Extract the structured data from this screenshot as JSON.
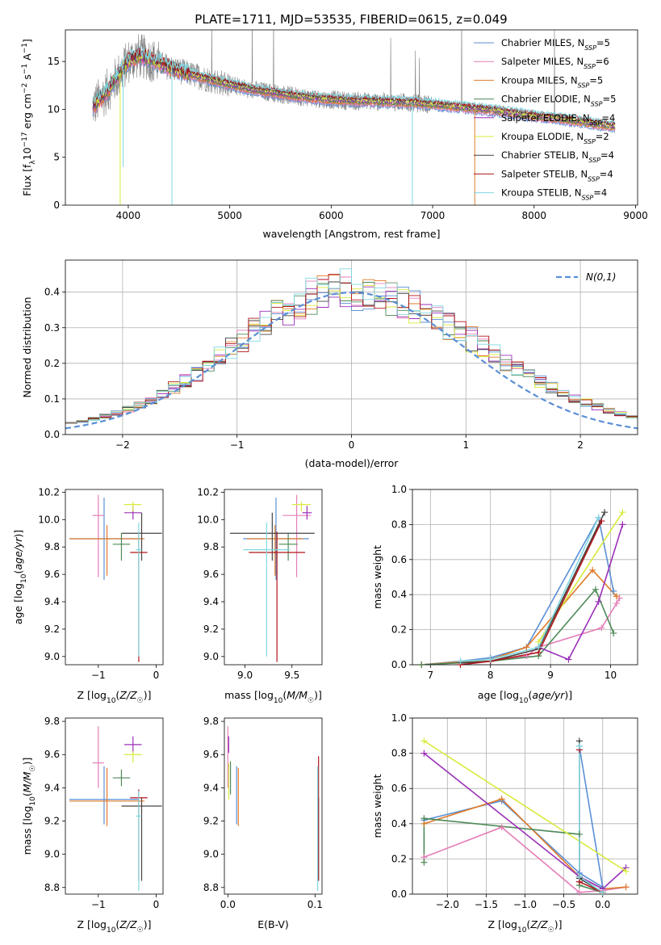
{
  "title": "PLATE=1711, MJD=53535, FIBERID=0615, z=0.049",
  "colors": {
    "chabrier_miles": "#5b8fd6",
    "salpeter_miles": "#e57fb8",
    "kroupa_miles": "#e07b2a",
    "chabrier_elodie": "#4e8a57",
    "salpeter_elodie": "#9b30b8",
    "kroupa_elodie": "#d9ea3d",
    "chabrier_stelib": "#444444",
    "salpeter_stelib": "#b0161b",
    "kroupa_stelib": "#7fd8e0",
    "data": "#808080",
    "grid": "#b0b0b0"
  },
  "legend_series": [
    {
      "name": "Chabrier MILES, N",
      "sub": "SSP",
      "eq": "=5",
      "color": "#5b8fd6"
    },
    {
      "name": "Salpeter MILES, N",
      "sub": "SSP",
      "eq": "=6",
      "color": "#e57fb8"
    },
    {
      "name": "Kroupa MILES, N",
      "sub": "SSP",
      "eq": "=5",
      "color": "#e07b2a"
    },
    {
      "name": "Chabrier ELODIE, N",
      "sub": "SSP",
      "eq": "=5",
      "color": "#4e8a57"
    },
    {
      "name": "Salpeter ELODIE, N",
      "sub": "SSP",
      "eq": "=4",
      "color": "#9b30b8"
    },
    {
      "name": "Kroupa ELODIE, N",
      "sub": "SSP",
      "eq": "=2",
      "color": "#d9ea3d"
    },
    {
      "name": "Chabrier STELIB, N",
      "sub": "SSP",
      "eq": "=4",
      "color": "#444444"
    },
    {
      "name": "Salpeter STELIB, N",
      "sub": "SSP",
      "eq": "=4",
      "color": "#b0161b"
    },
    {
      "name": "Kroupa STELIB, N",
      "sub": "SSP",
      "eq": "=4",
      "color": "#7fd8e0"
    }
  ],
  "chart_data": [
    {
      "id": "spectrum",
      "type": "line",
      "xlabel": "wavelength [Angstrom, rest frame]",
      "ylabel": "Flux [f_λ10^-17 erg cm^-2 s^-1 A^-1]",
      "xlim": [
        3380,
        9020
      ],
      "ylim": [
        0,
        18.3
      ],
      "xticks": [
        4000,
        5000,
        6000,
        7000,
        8000,
        9000
      ],
      "yticks": [
        0,
        5,
        10,
        15
      ],
      "legend": "top-right",
      "grid": false,
      "continuum": {
        "x": [
          3650,
          3700,
          3800,
          3900,
          4000,
          4100,
          4200,
          4400,
          4600,
          4800,
          5000,
          5200,
          5500,
          5800,
          6000,
          6200,
          6500,
          6800,
          7000,
          7200,
          7400,
          7600,
          7800,
          8000,
          8200,
          8400,
          8600,
          8800
        ],
        "y": [
          10.3,
          10.8,
          12.0,
          13.5,
          15.0,
          15.6,
          15.3,
          14.4,
          13.7,
          13.1,
          12.6,
          12.1,
          11.6,
          11.2,
          11.0,
          10.9,
          10.8,
          10.7,
          10.5,
          10.3,
          10.1,
          9.9,
          9.6,
          9.3,
          9.1,
          8.8,
          8.5,
          8.2
        ]
      },
      "dips": [
        [
          3920,
          0
        ],
        [
          4430,
          0
        ],
        [
          6800,
          0
        ],
        [
          7415,
          0
        ],
        [
          3950,
          4
        ]
      ]
    },
    {
      "id": "residuals",
      "type": "line",
      "xlabel": "(data-model)/error",
      "ylabel": "Normed distribution",
      "xlim": [
        -2.5,
        2.5
      ],
      "ylim": [
        0,
        0.49
      ],
      "xticks": [
        -2,
        -1,
        0,
        1,
        2
      ],
      "yticks": [
        0.0,
        0.1,
        0.2,
        0.3,
        0.4
      ],
      "legend": "top-right",
      "legend_label": "N(0,1)",
      "grid": true,
      "bin_width": 0.1
    },
    {
      "id": "age_vs_Z",
      "type": "scatter",
      "xlabel": "Z [log10(Z/Z☉)]",
      "ylabel": "age [log10(age/yr)]",
      "xlim": [
        -1.57,
        0.12
      ],
      "ylim": [
        8.94,
        10.22
      ],
      "xticks": [
        -1,
        0
      ],
      "yticks": [
        9.0,
        9.2,
        9.4,
        9.6,
        9.8,
        10.0,
        10.2
      ],
      "points": [
        {
          "series": 0,
          "x": -0.9,
          "xerr": [
            0.6,
            0.6
          ],
          "y": 9.86,
          "yerr": [
            0.3,
            0.3
          ]
        },
        {
          "series": 1,
          "x": -1.0,
          "xerr": [
            0.1,
            0.1
          ],
          "y": 10.03,
          "yerr": [
            0.45,
            0.15
          ]
        },
        {
          "series": 2,
          "x": -0.85,
          "xerr": [
            0.65,
            0.65
          ],
          "y": 9.86,
          "yerr": [
            0.27,
            0.1
          ]
        },
        {
          "series": 3,
          "x": -0.6,
          "xerr": [
            0.15,
            0.15
          ],
          "y": 9.82,
          "yerr": [
            0.12,
            0.08
          ]
        },
        {
          "series": 4,
          "x": -0.4,
          "xerr": [
            0.15,
            0.15
          ],
          "y": 10.05,
          "yerr": [
            0.05,
            0.05
          ]
        },
        {
          "series": 5,
          "x": -0.4,
          "xerr": [
            0.15,
            0.15
          ],
          "y": 10.11,
          "yerr": [
            0.05,
            0.02
          ]
        },
        {
          "series": 6,
          "x": -0.25,
          "xerr": [
            0.35,
            0.35
          ],
          "y": 9.9,
          "yerr": [
            0.2,
            0.15
          ]
        },
        {
          "series": 7,
          "x": -0.3,
          "xerr": [
            0.15,
            0.15
          ],
          "y": 9.76,
          "yerr": [
            0.8,
            0.15
          ]
        },
        {
          "series": 8,
          "x": -0.3,
          "xerr": [
            0.05,
            0.05
          ],
          "y": 9.78,
          "yerr": [
            0.78,
            0.2
          ]
        }
      ]
    },
    {
      "id": "age_vs_mass",
      "type": "scatter",
      "xlabel": "mass [log10(M/M☉)]",
      "ylabel": "",
      "xlim": [
        8.78,
        9.82
      ],
      "ylim": [
        8.94,
        10.22
      ],
      "xticks": [
        9.0,
        9.5
      ],
      "yticks": [
        9.0,
        9.2,
        9.4,
        9.6,
        9.8,
        10.0,
        10.2
      ],
      "points": [
        {
          "series": 0,
          "x": 9.33,
          "xerr": [
            0.35,
            0.35
          ],
          "y": 9.86,
          "yerr": [
            0.3,
            0.3
          ]
        },
        {
          "series": 1,
          "x": 9.55,
          "xerr": [
            0.15,
            0.15
          ],
          "y": 10.03,
          "yerr": [
            0.45,
            0.15
          ]
        },
        {
          "series": 2,
          "x": 9.32,
          "xerr": [
            0.3,
            0.3
          ],
          "y": 9.86,
          "yerr": [
            0.27,
            0.1
          ]
        },
        {
          "series": 3,
          "x": 9.46,
          "xerr": [
            0.1,
            0.1
          ],
          "y": 9.82,
          "yerr": [
            0.12,
            0.08
          ]
        },
        {
          "series": 4,
          "x": 9.66,
          "xerr": [
            0.05,
            0.05
          ],
          "y": 10.05,
          "yerr": [
            0.05,
            0.05
          ]
        },
        {
          "series": 5,
          "x": 9.6,
          "xerr": [
            0.1,
            0.1
          ],
          "y": 10.11,
          "yerr": [
            0.05,
            0.02
          ]
        },
        {
          "series": 6,
          "x": 9.29,
          "xerr": [
            0.45,
            0.45
          ],
          "y": 9.9,
          "yerr": [
            0.2,
            0.15
          ]
        },
        {
          "series": 7,
          "x": 9.34,
          "xerr": [
            0.3,
            0.3
          ],
          "y": 9.76,
          "yerr": [
            0.8,
            0.15
          ]
        },
        {
          "series": 8,
          "x": 9.23,
          "xerr": [
            0.25,
            0.25
          ],
          "y": 9.78,
          "yerr": [
            0.78,
            0.2
          ]
        }
      ]
    },
    {
      "id": "massweight_vs_age",
      "type": "line",
      "xlabel": "age [log10(age/yr)]",
      "ylabel": "mass weight",
      "xlim": [
        6.7,
        10.45
      ],
      "ylim": [
        0,
        1.0
      ],
      "xticks": [
        7,
        8,
        9,
        10
      ],
      "yticks": [
        0.0,
        0.2,
        0.4,
        0.6,
        0.8,
        1.0
      ],
      "grid": true,
      "series": [
        {
          "index": 0,
          "x": [
            6.85,
            7.5,
            8.0,
            8.6,
            9.8,
            10.05
          ],
          "y": [
            0.0,
            0.02,
            0.04,
            0.1,
            0.84,
            0.42
          ]
        },
        {
          "index": 1,
          "x": [
            6.85,
            8.0,
            8.6,
            8.8,
            9.85,
            10.1,
            10.15
          ],
          "y": [
            0.0,
            0.02,
            0.05,
            0.1,
            0.21,
            0.35,
            0.38
          ]
        },
        {
          "index": 2,
          "x": [
            6.85,
            8.0,
            8.6,
            9.7,
            10.1
          ],
          "y": [
            0.0,
            0.03,
            0.1,
            0.54,
            0.39
          ]
        },
        {
          "index": 3,
          "x": [
            6.85,
            8.0,
            8.8,
            9.75,
            10.05
          ],
          "y": [
            0.0,
            0.02,
            0.05,
            0.43,
            0.18
          ]
        },
        {
          "index": 4,
          "x": [
            8.8,
            9.3,
            9.8,
            10.2
          ],
          "y": [
            0.1,
            0.03,
            0.36,
            0.8
          ]
        },
        {
          "index": 5,
          "x": [
            8.8,
            10.2
          ],
          "y": [
            0.13,
            0.87
          ]
        },
        {
          "index": 6,
          "x": [
            7.5,
            8.0,
            8.8,
            9.9
          ],
          "y": [
            0.01,
            0.02,
            0.09,
            0.87
          ]
        },
        {
          "index": 7,
          "x": [
            7.5,
            8.0,
            8.8,
            9.85
          ],
          "y": [
            0.0,
            0.02,
            0.07,
            0.82
          ]
        },
        {
          "index": 8,
          "x": [
            7.5,
            8.0,
            8.8,
            9.8
          ],
          "y": [
            0.02,
            0.03,
            0.1,
            0.84
          ]
        }
      ]
    },
    {
      "id": "mass_vs_Z",
      "type": "scatter",
      "xlabel": "Z [log10(Z/Z☉)]",
      "ylabel": "mass [log10(M/M☉)]",
      "xlim": [
        -1.57,
        0.12
      ],
      "ylim": [
        8.76,
        9.82
      ],
      "xticks": [
        -1,
        0
      ],
      "yticks": [
        8.8,
        9.0,
        9.2,
        9.4,
        9.6,
        9.8
      ],
      "points": [
        {
          "series": 0,
          "x": -0.9,
          "xerr": [
            0.6,
            0.6
          ],
          "y": 9.33,
          "yerr": [
            0.15,
            0.2
          ]
        },
        {
          "series": 1,
          "x": -1.0,
          "xerr": [
            0.1,
            0.1
          ],
          "y": 9.55,
          "yerr": [
            0.15,
            0.22
          ]
        },
        {
          "series": 2,
          "x": -0.85,
          "xerr": [
            0.65,
            0.65
          ],
          "y": 9.32,
          "yerr": [
            0.15,
            0.2
          ]
        },
        {
          "series": 3,
          "x": -0.6,
          "xerr": [
            0.15,
            0.15
          ],
          "y": 9.46,
          "yerr": [
            0.05,
            0.05
          ]
        },
        {
          "series": 4,
          "x": -0.4,
          "xerr": [
            0.15,
            0.15
          ],
          "y": 9.66,
          "yerr": [
            0.05,
            0.05
          ]
        },
        {
          "series": 5,
          "x": -0.4,
          "xerr": [
            0.15,
            0.15
          ],
          "y": 9.6,
          "yerr": [
            0.05,
            0.02
          ]
        },
        {
          "series": 6,
          "x": -0.25,
          "xerr": [
            0.35,
            0.35
          ],
          "y": 9.29,
          "yerr": [
            0.45,
            0.05
          ]
        },
        {
          "series": 7,
          "x": -0.3,
          "xerr": [
            0.15,
            0.15
          ],
          "y": 9.34,
          "yerr": [
            0.5,
            0.05
          ]
        },
        {
          "series": 8,
          "x": -0.3,
          "xerr": [
            0.05,
            0.05
          ],
          "y": 9.23,
          "yerr": [
            0.45,
            0.15
          ]
        }
      ]
    },
    {
      "id": "mass_vs_EBV",
      "type": "scatter",
      "xlabel": "E(B-V)",
      "ylabel": "",
      "xlim": [
        -0.004,
        0.108
      ],
      "ylim": [
        8.76,
        9.82
      ],
      "xticks": [
        0.0,
        0.1
      ],
      "yticks": [
        8.8,
        9.0,
        9.2,
        9.4,
        9.6,
        9.8
      ],
      "points": [
        {
          "series": 0,
          "x": 0.01,
          "y": 9.33,
          "yerr": [
            0.15,
            0.2
          ]
        },
        {
          "series": 1,
          "x": 0.0,
          "y": 9.55,
          "yerr": [
            0.15,
            0.22
          ]
        },
        {
          "series": 2,
          "x": 0.012,
          "y": 9.32,
          "yerr": [
            0.15,
            0.2
          ]
        },
        {
          "series": 3,
          "x": 0.003,
          "y": 9.46,
          "yerr": [
            0.1,
            0.1
          ]
        },
        {
          "series": 4,
          "x": 0.001,
          "y": 9.66,
          "yerr": [
            0.05,
            0.05
          ]
        },
        {
          "series": 5,
          "x": 0.001,
          "y": 9.45,
          "yerr": [
            0.12,
            0.1
          ]
        },
        {
          "series": 6,
          "x": 0.104,
          "y": 9.29,
          "yerr": [
            0.45,
            0.05
          ]
        },
        {
          "series": 7,
          "x": 0.104,
          "y": 9.34,
          "yerr": [
            0.5,
            0.25
          ]
        },
        {
          "series": 8,
          "x": 0.103,
          "y": 9.23,
          "yerr": [
            0.45,
            0.3
          ]
        }
      ]
    },
    {
      "id": "massweight_vs_Z",
      "type": "line",
      "xlabel": "Z [log10(Z/Z☉)]",
      "ylabel": "mass weight",
      "xlim": [
        -2.45,
        0.45
      ],
      "ylim": [
        0,
        1.0
      ],
      "xticks": [
        -2.0,
        -1.5,
        -1.0,
        -0.5,
        0.0
      ],
      "yticks": [
        0.0,
        0.2,
        0.4,
        0.6,
        0.8,
        1.0
      ],
      "grid": true,
      "series": [
        {
          "index": 0,
          "x": [
            -2.3,
            -1.3,
            -0.3,
            0.0,
            -0.3
          ],
          "y": [
            0.42,
            0.53,
            0.12,
            0.04,
            0.84
          ]
        },
        {
          "index": 1,
          "x": [
            -2.3,
            -1.3,
            -0.3,
            0.0,
            0.3
          ],
          "y": [
            0.21,
            0.38,
            0.01,
            0.02,
            0.04
          ]
        },
        {
          "index": 2,
          "x": [
            -2.3,
            -1.3,
            -0.3,
            0.0,
            0.3
          ],
          "y": [
            0.4,
            0.54,
            0.1,
            0.03,
            0.04
          ]
        },
        {
          "index": 3,
          "x": [
            -2.3,
            -2.3,
            -0.3,
            -0.3,
            0.0
          ],
          "y": [
            0.18,
            0.43,
            0.34,
            0.05,
            0.01
          ]
        },
        {
          "index": 4,
          "x": [
            -2.3,
            -0.3,
            0.0,
            0.3
          ],
          "y": [
            0.8,
            0.1,
            0.03,
            0.15
          ]
        },
        {
          "index": 5,
          "x": [
            -2.3,
            0.3
          ],
          "y": [
            0.87,
            0.13
          ]
        },
        {
          "index": 6,
          "x": [
            -0.3,
            -0.3,
            0.0
          ],
          "y": [
            0.87,
            0.09,
            0.01
          ]
        },
        {
          "index": 7,
          "x": [
            -0.3,
            -0.3,
            0.0
          ],
          "y": [
            0.82,
            0.07,
            0.01
          ]
        },
        {
          "index": 8,
          "x": [
            -0.3,
            -0.3,
            0.0
          ],
          "y": [
            0.84,
            0.1,
            0.01
          ]
        }
      ]
    }
  ]
}
